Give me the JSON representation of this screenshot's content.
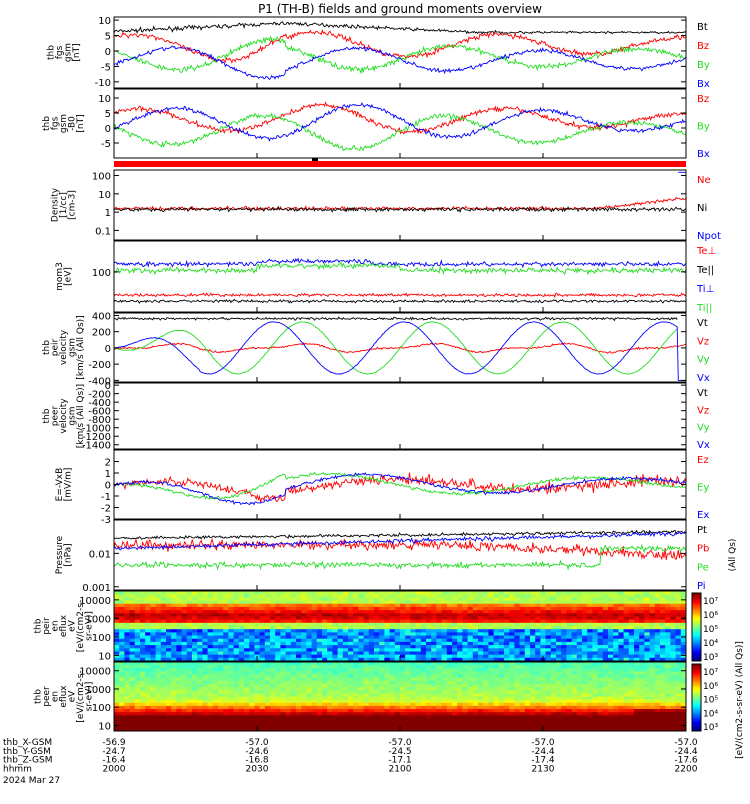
{
  "title": "P1 (TH-B) fields and ground moments overview",
  "colors": {
    "black": "#000000",
    "red": "#ff0000",
    "green": "#22dd22",
    "blue": "#0000ff",
    "bar": "#ff0000"
  },
  "chart_data": [
    {
      "type": "line",
      "id": "fgs",
      "ylabel": [
        "thb",
        "fgs",
        "gsm",
        "[nT]"
      ],
      "ylim": [
        -12,
        11
      ],
      "yticks": [
        10,
        5,
        0,
        -5,
        -10
      ],
      "log": false,
      "series": [
        {
          "name": "Bt",
          "color": "black"
        },
        {
          "name": "Bz",
          "color": "red"
        },
        {
          "name": "By",
          "color": "green"
        },
        {
          "name": "Bx",
          "color": "blue"
        }
      ]
    },
    {
      "type": "line",
      "id": "fgs-dsl",
      "ylabel": [
        "thb",
        "fgs",
        "gsm",
        "-B0",
        "[nT]"
      ],
      "ylim": [
        -10,
        13
      ],
      "yticks": [
        10,
        5,
        0,
        -5
      ],
      "log": false,
      "series": [
        {
          "name": "Bz",
          "color": "red"
        },
        {
          "name": "By",
          "color": "green"
        },
        {
          "name": "Bx",
          "color": "blue"
        }
      ]
    },
    {
      "type": "line",
      "id": "density",
      "ylabel": [
        "Density",
        "[1/cc]",
        "[cm-3]"
      ],
      "ylim": [
        0.03,
        200
      ],
      "yticks": [
        100.0,
        10.0,
        1.0,
        0.1
      ],
      "log": true,
      "series": [
        {
          "name": "Ne",
          "color": "red"
        },
        {
          "name": "Ni",
          "color": "black"
        },
        {
          "name": "Npot",
          "color": "blue"
        }
      ]
    },
    {
      "type": "line",
      "id": "temperature",
      "ylabel": [
        "mom3",
        "[eV]"
      ],
      "ylim": [
        5,
        1000
      ],
      "yticks": [
        100
      ],
      "log": true,
      "series": [
        {
          "name": "Te⊥",
          "color": "red"
        },
        {
          "name": "Te||",
          "color": "black"
        },
        {
          "name": "Ti⊥",
          "color": "blue"
        },
        {
          "name": "Ti||",
          "color": "green"
        }
      ]
    },
    {
      "type": "line",
      "id": "peir-velocity",
      "ylabel": [
        "thb",
        "peir",
        "velocity",
        "gsm",
        "[km/s (All Qs)]"
      ],
      "ylim": [
        -420,
        430
      ],
      "yticks": [
        400,
        200,
        0,
        -200,
        -400
      ],
      "log": false,
      "series": [
        {
          "name": "Vt",
          "color": "black"
        },
        {
          "name": "Vz",
          "color": "red"
        },
        {
          "name": "Vy",
          "color": "green"
        },
        {
          "name": "Vx",
          "color": "blue"
        }
      ]
    },
    {
      "type": "line",
      "id": "peer-velocity",
      "ylabel": [
        "thb",
        "peer",
        "velocity",
        "gsm",
        "[km/s (All Qs)]"
      ],
      "ylim": [
        -1500,
        50
      ],
      "yticks": [
        0,
        -200,
        -400,
        -600,
        -800,
        -1000,
        -1200,
        -1400
      ],
      "log": false,
      "series": [
        {
          "name": "Vt",
          "color": "black"
        },
        {
          "name": "Vz",
          "color": "red"
        },
        {
          "name": "Vy",
          "color": "green"
        },
        {
          "name": "Vx",
          "color": "blue"
        }
      ]
    },
    {
      "type": "line",
      "id": "efield",
      "ylabel": [
        "E=-VxB",
        "[mV/m]"
      ],
      "ylim": [
        -3,
        3
      ],
      "yticks": [
        2,
        1,
        0,
        -1,
        -2,
        -3
      ],
      "log": false,
      "series": [
        {
          "name": "Ez",
          "color": "red"
        },
        {
          "name": "Ey",
          "color": "green"
        },
        {
          "name": "Ex",
          "color": "blue"
        }
      ]
    },
    {
      "type": "line",
      "id": "pressure",
      "ylabel": [
        "Pressure",
        "[nPa]"
      ],
      "ylim": [
        0.0008,
        0.1
      ],
      "yticks": [
        0.01,
        0.001
      ],
      "log": true,
      "series": [
        {
          "name": "Pt",
          "color": "black"
        },
        {
          "name": "Pb",
          "color": "red"
        },
        {
          "name": "Pe",
          "color": "green"
        },
        {
          "name": "Pi",
          "color": "blue"
        }
      ],
      "right_label": "(All Qs)"
    },
    {
      "type": "heatmap",
      "id": "peir-en",
      "ylabel": [
        "thb",
        "peir",
        "en",
        "eflux",
        "eV",
        "[eV/(cm2-s-",
        "sr-eV)]"
      ],
      "ylim": [
        5,
        30000
      ],
      "yticks": [
        10000,
        1000,
        100,
        10
      ],
      "log": true
    },
    {
      "type": "heatmap",
      "id": "peer-en",
      "ylabel": [
        "thb",
        "peer",
        "en",
        "eflux",
        "eV",
        "[eV/(cm2-s-",
        "sr-eV)]"
      ],
      "ylim": [
        5,
        30000
      ],
      "yticks": [
        10000,
        1000,
        100,
        10
      ],
      "log": true
    }
  ],
  "colorbar": {
    "ticks_top": [
      "10⁷",
      "10⁶",
      "10⁵",
      "10⁴",
      "10³"
    ],
    "ticks_bottom": [
      "10⁷",
      "10⁶",
      "10⁵",
      "10⁴",
      "10³"
    ],
    "label": "[eV/(cm2-s-sr-eV) (All Qs)]"
  },
  "xaxis": {
    "rows": [
      {
        "label": "thb_X-GSM",
        "values": [
          "-56.9",
          "-57.0",
          "-57.0",
          "-57.0",
          "-57.0"
        ]
      },
      {
        "label": "thb_Y-GSM",
        "values": [
          "-24.7",
          "-24.6",
          "-24.5",
          "-24.4",
          "-24.4"
        ]
      },
      {
        "label": "thb_Z-GSM",
        "values": [
          "-16.4",
          "-16.8",
          "-17.1",
          "-17.4",
          "-17.6"
        ]
      },
      {
        "label": "hhmm",
        "values": [
          "2000",
          "2030",
          "2100",
          "2130",
          "2200"
        ]
      }
    ],
    "date": "2024 Mar 27"
  }
}
